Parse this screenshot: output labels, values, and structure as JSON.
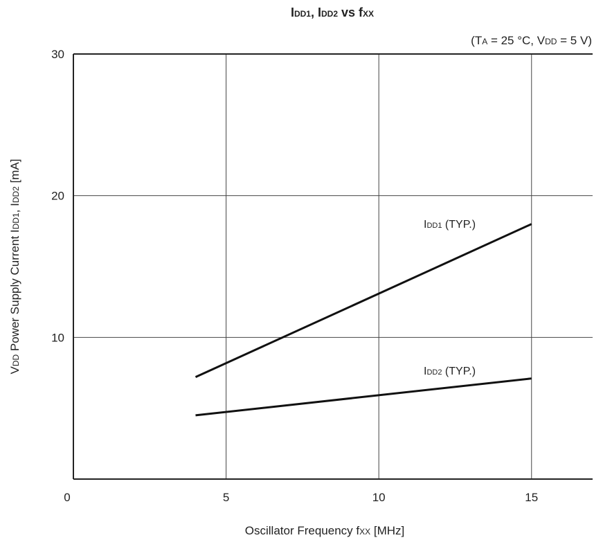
{
  "chart_data": {
    "type": "line",
    "title": "IDD1, IDD2 vs fXX",
    "title_parts": [
      {
        "t": "I",
        "sub": false
      },
      {
        "t": "DD1",
        "sub": true
      },
      {
        "t": ", I",
        "sub": false
      },
      {
        "t": "DD2",
        "sub": true
      },
      {
        "t": " vs f",
        "sub": false
      },
      {
        "t": "XX",
        "sub": true
      }
    ],
    "conditions": "(TA = 25 °C, VDD = 5 V)",
    "conditions_parts": [
      {
        "t": "(T",
        "sub": false
      },
      {
        "t": "A",
        "sub": true
      },
      {
        "t": " = 25 °C, V",
        "sub": false
      },
      {
        "t": "DD",
        "sub": true
      },
      {
        "t": " = 5 V)",
        "sub": false
      }
    ],
    "xlabel": "Oscillator Frequency  fXX [MHz]",
    "xlabel_parts": [
      {
        "t": "Oscillator Frequency  f",
        "sub": false
      },
      {
        "t": "XX",
        "sub": true
      },
      {
        "t": " [MHz]",
        "sub": false
      }
    ],
    "ylabel": "VDD Power Supply Current  IDD1, IDD2 [mA]",
    "ylabel_parts": [
      {
        "t": "V",
        "sub": false
      },
      {
        "t": "DD",
        "sub": true
      },
      {
        "t": " Power Supply Current  I",
        "sub": false
      },
      {
        "t": "DD1",
        "sub": true
      },
      {
        "t": ", I",
        "sub": false
      },
      {
        "t": "DD2",
        "sub": true
      },
      {
        "t": " [mA]",
        "sub": false
      }
    ],
    "xlim": [
      0,
      17
    ],
    "ylim": [
      0,
      30
    ],
    "xticks": [
      0,
      5,
      10,
      15
    ],
    "yticks": [
      10,
      20,
      30
    ],
    "xgrid": [
      5,
      10,
      15
    ],
    "ygrid": [
      10,
      20
    ],
    "grid": true,
    "series": [
      {
        "name": "IDD1 (TYP.)",
        "name_parts": [
          {
            "t": "I",
            "sub": false
          },
          {
            "t": "DD1",
            "sub": true
          },
          {
            "t": " (TYP.)",
            "sub": false
          }
        ],
        "x": [
          4,
          15
        ],
        "y": [
          7.2,
          18.0
        ]
      },
      {
        "name": "IDD2 (TYP.)",
        "name_parts": [
          {
            "t": "I",
            "sub": false
          },
          {
            "t": "DD2",
            "sub": true
          },
          {
            "t": " (TYP.)",
            "sub": false
          }
        ],
        "x": [
          4,
          15
        ],
        "y": [
          4.5,
          7.1
        ]
      }
    ]
  }
}
